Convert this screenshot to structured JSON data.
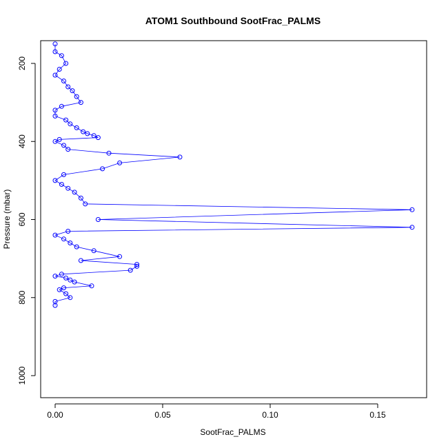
{
  "chart_data": {
    "type": "scatter",
    "title": "ATOM1 Southbound SootFrac_PALMS",
    "xlabel": "SootFrac_PALMS",
    "ylabel": "Pressure (mbar)",
    "xlim": [
      0,
      0.167
    ],
    "ylim": [
      1050,
      150
    ],
    "y_reversed": true,
    "x_ticks": [
      0.0,
      0.05,
      0.1,
      0.15
    ],
    "x_tick_labels": [
      "0.00",
      "0.05",
      "0.10",
      "0.15"
    ],
    "y_ticks": [
      200,
      400,
      600,
      800,
      1000
    ],
    "y_tick_labels": [
      "200",
      "400",
      "600",
      "800",
      "1000"
    ],
    "grid": false,
    "legend": "none",
    "marker": "open-circle",
    "connected": true,
    "color": "#0000ff",
    "series": [
      {
        "x": [
          0.0,
          0.0,
          0.003,
          0.005,
          0.002,
          0.0,
          0.004,
          0.006,
          0.008,
          0.01,
          0.012,
          0.003,
          0.0,
          0.0,
          0.005,
          0.007,
          0.01,
          0.013,
          0.015,
          0.018,
          0.02,
          0.002,
          0.0,
          0.004,
          0.006,
          0.025,
          0.058,
          0.03,
          0.022,
          0.004,
          0.0,
          0.003,
          0.006,
          0.009,
          0.012,
          0.014,
          0.166,
          0.02,
          0.166,
          0.006,
          0.0,
          0.004,
          0.007,
          0.01,
          0.018,
          0.03,
          0.012,
          0.038,
          0.038,
          0.035,
          0.003,
          0.0,
          0.005,
          0.007,
          0.009,
          0.017,
          0.004,
          0.002,
          0.005,
          0.007,
          0.0,
          0.0
        ],
        "y": [
          150,
          170,
          180,
          200,
          215,
          230,
          245,
          260,
          270,
          285,
          300,
          310,
          320,
          335,
          345,
          355,
          365,
          375,
          380,
          385,
          390,
          395,
          400,
          410,
          420,
          430,
          440,
          455,
          470,
          485,
          500,
          510,
          520,
          530,
          545,
          560,
          575,
          600,
          620,
          630,
          640,
          650,
          660,
          670,
          680,
          695,
          705,
          715,
          720,
          730,
          740,
          745,
          750,
          755,
          760,
          770,
          775,
          780,
          790,
          800,
          810,
          820
        ]
      }
    ]
  }
}
